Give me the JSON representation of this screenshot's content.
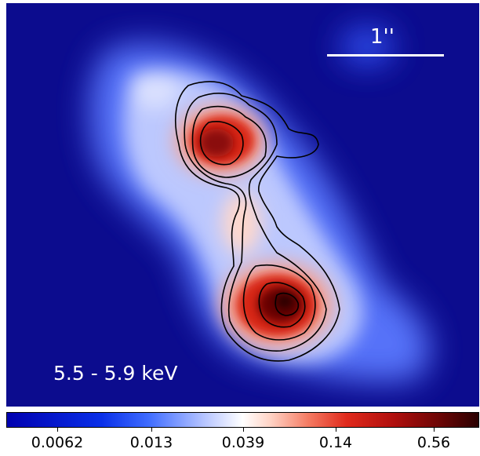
{
  "image": {
    "band_label": "5.5 - 5.9 keV",
    "scale_label": "1''",
    "background_color": "#0c0c8e"
  },
  "colorbar": {
    "tick_labels": [
      "0.0062",
      "0.013",
      "0.039",
      "0.14",
      "0.56"
    ],
    "colors": [
      "#0000b0",
      "#3f6cff",
      "#ffffff",
      "#e02a1c",
      "#2a0000"
    ]
  }
}
